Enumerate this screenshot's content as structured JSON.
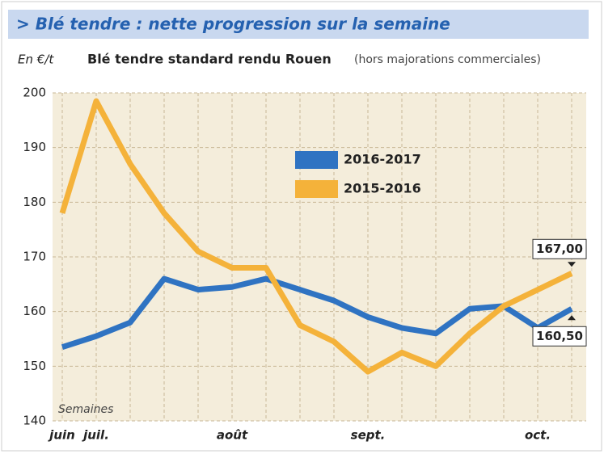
{
  "chart_data": {
    "type": "line",
    "title": "> Blé tendre : nette progression sur la semaine",
    "y_label": "En €/t",
    "subtitle": "Blé tendre standard rendu Rouen",
    "subtitle_note": "(hors majorations commerciales)",
    "x_label": "Semaines",
    "categories": [
      "juin",
      "juil.",
      null,
      null,
      null,
      "août",
      null,
      null,
      null,
      "sept.",
      null,
      null,
      null,
      null,
      "oct.",
      null
    ],
    "series": [
      {
        "name": "2016-2017",
        "color": "#2f73c2",
        "values": [
          153.5,
          155.5,
          158,
          166,
          164,
          164.5,
          166,
          164,
          162,
          159,
          157,
          156,
          160.5,
          161,
          157,
          160.5
        ],
        "value_labels": [
          null,
          null,
          null,
          null,
          null,
          null,
          null,
          null,
          null,
          null,
          null,
          null,
          null,
          null,
          null,
          "160,50"
        ]
      },
      {
        "name": "2015-2016",
        "color": "#f4b23a",
        "values": [
          178,
          198.5,
          187,
          178,
          171,
          168,
          168,
          157.5,
          154.5,
          149,
          152.5,
          150,
          156,
          161,
          164,
          167
        ],
        "value_labels": [
          null,
          null,
          null,
          null,
          null,
          null,
          null,
          null,
          null,
          null,
          null,
          null,
          null,
          null,
          null,
          "167,00"
        ]
      }
    ],
    "ylim": [
      140,
      200
    ],
    "yticks": [
      140,
      150,
      160,
      170,
      180,
      190,
      200
    ],
    "grid": true
  }
}
